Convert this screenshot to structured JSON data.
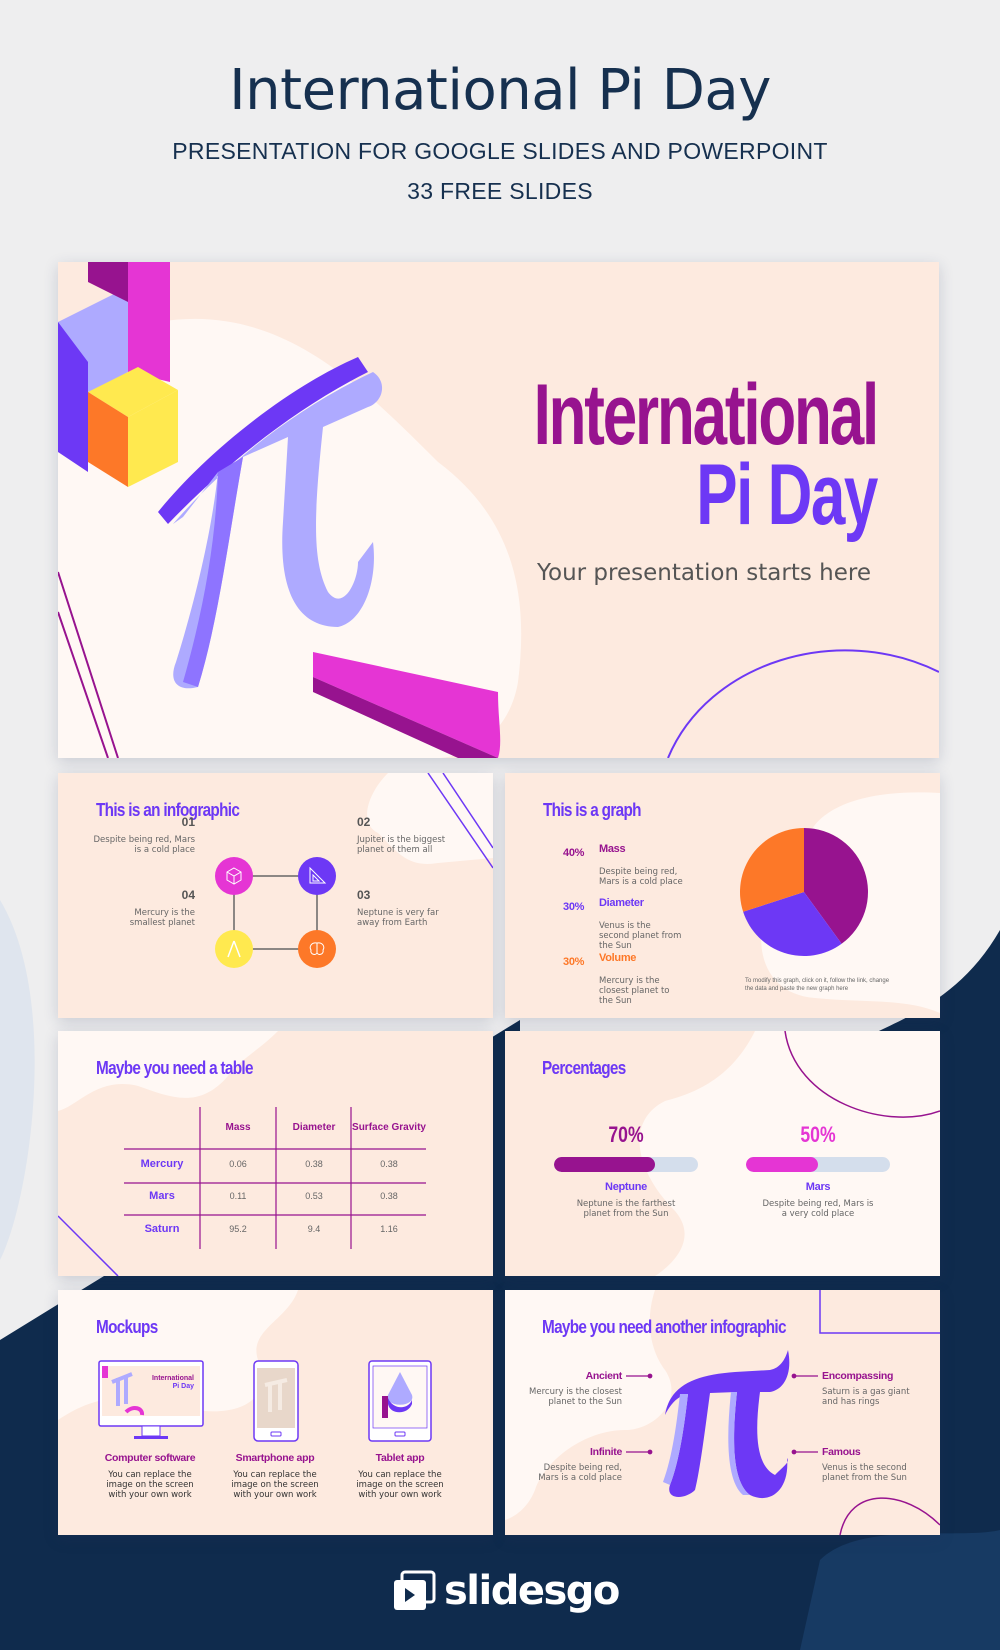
{
  "header": {
    "title": "International Pi Day",
    "subtitle": "PRESENTATION FOR GOOGLE SLIDES AND POWERPOINT",
    "slide_count": "33 FREE SLIDES"
  },
  "hero": {
    "title_line1": "International",
    "title_line2": "Pi Day",
    "subtitle": "Your presentation starts here"
  },
  "infographic": {
    "title": "This is an infographic",
    "items": [
      {
        "num": "01",
        "text": "Despite being red, Mars is a cold place",
        "icon": "cube-icon",
        "color": "#e535d4"
      },
      {
        "num": "02",
        "text": "Jupiter is the biggest planet of them all",
        "icon": "set-square-icon",
        "color": "#6d38f5"
      },
      {
        "num": "03",
        "text": "Neptune is very far away from Earth",
        "icon": "brain-icon",
        "color": "#fd7828"
      },
      {
        "num": "04",
        "text": "Mercury is the smallest planet",
        "icon": "compass-icon",
        "color": "#ffe94f"
      }
    ]
  },
  "graph": {
    "title": "This is a graph",
    "note": "To modify this graph, click on it, follow the link, change the data and paste the new graph here",
    "items": [
      {
        "pct": "40%",
        "label": "Mass",
        "text": "Despite being red, Mars is a cold place"
      },
      {
        "pct": "30%",
        "label": "Diameter",
        "text": "Venus is the second planet from the Sun"
      },
      {
        "pct": "30%",
        "label": "Volume",
        "text": "Mercury is the closest planet to the Sun"
      }
    ]
  },
  "chart_data": {
    "type": "pie",
    "categories": [
      "Mass",
      "Diameter",
      "Volume"
    ],
    "values": [
      40,
      30,
      30
    ],
    "colors": [
      "#97138f",
      "#6d38f5",
      "#fd7828"
    ]
  },
  "table": {
    "title": "Maybe you need a table",
    "headers": [
      "Mass",
      "Diameter",
      "Surface Gravity"
    ],
    "rows": [
      {
        "name": "Mercury",
        "values": [
          "0.06",
          "0.38",
          "0.38"
        ]
      },
      {
        "name": "Mars",
        "values": [
          "0.11",
          "0.53",
          "0.38"
        ]
      },
      {
        "name": "Saturn",
        "values": [
          "95.2",
          "9.4",
          "1.16"
        ]
      }
    ]
  },
  "percentages": {
    "title": "Percentages",
    "items": [
      {
        "pct": "70%",
        "value": 70,
        "label": "Neptune",
        "text": "Neptune is the farthest planet from the Sun",
        "color": "#97138f"
      },
      {
        "pct": "50%",
        "value": 50,
        "label": "Mars",
        "text": "Despite being red, Mars is a very cold place",
        "color": "#e535d4"
      }
    ]
  },
  "mockups": {
    "title": "Mockups",
    "mini_title1": "International",
    "mini_title2": "Pi Day",
    "items": [
      {
        "label": "Computer software",
        "text": "You can replace the image on the screen with your own work"
      },
      {
        "label": "Smartphone app",
        "text": "You can replace the image on the screen with your own work"
      },
      {
        "label": "Tablet app",
        "text": "You can replace the image on the screen with your own work"
      }
    ]
  },
  "infographic2": {
    "title": "Maybe you need another infographic",
    "items": [
      {
        "label": "Ancient",
        "text": "Mercury is the closest planet to the Sun"
      },
      {
        "label": "Infinite",
        "text": "Despite being red, Mars is a cold place"
      },
      {
        "label": "Encompassing",
        "text": "Saturn is a gas giant and has rings"
      },
      {
        "label": "Famous",
        "text": "Venus is the second planet from the Sun"
      }
    ]
  },
  "footer": {
    "brand": "slidesgo"
  }
}
